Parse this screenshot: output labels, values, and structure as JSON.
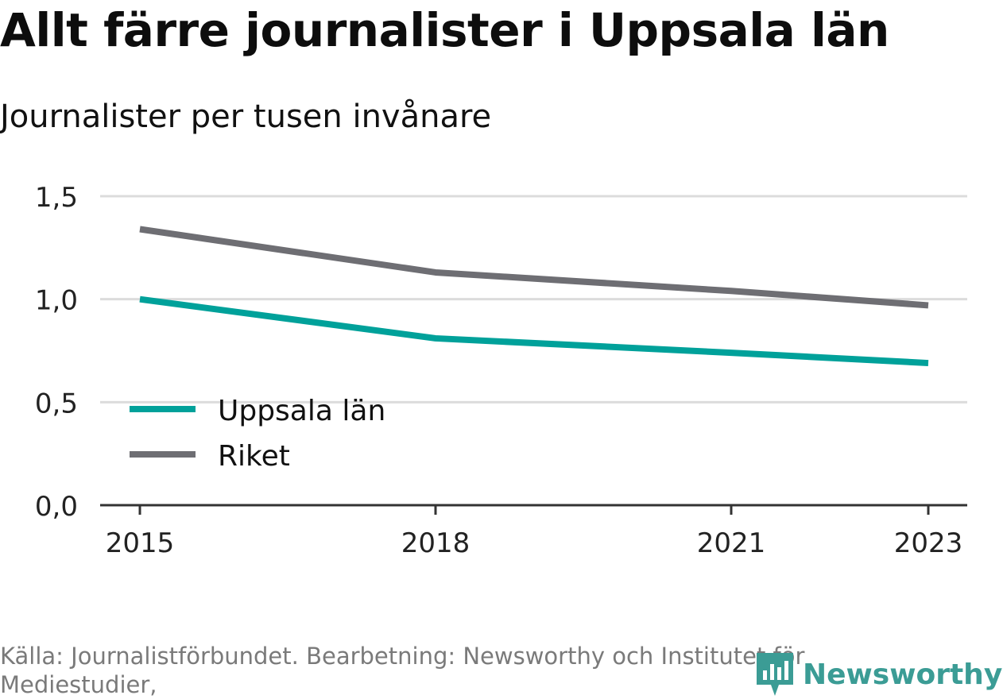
{
  "title": "Allt färre journalister i Uppsala län",
  "subtitle": "Journalister per tusen invånare",
  "source": "Källa: Journalistförbundet. Bearbetning: Newsworthy och Institutet för Mediestudier,",
  "logo_text": "Newsworthy",
  "logo_icon": "bar-chart-icon",
  "colors": {
    "uppsala": "#00a19a",
    "riket": "#6e6e73",
    "grid": "#dcdcdc",
    "axis": "#333333"
  },
  "chart_data": {
    "type": "line",
    "x_ticks": [
      "2015",
      "2018",
      "2021",
      "2023"
    ],
    "y_ticks": [
      "0,0",
      "0,5",
      "1,0",
      "1,5"
    ],
    "ylim": [
      0,
      1.5
    ],
    "xlim": [
      2015,
      2023
    ],
    "grid": true,
    "legend_position": "bottom-left",
    "series": [
      {
        "name": "Uppsala län",
        "color": "#00a19a",
        "points": [
          {
            "x": 2015,
            "y": 1.0
          },
          {
            "x": 2018,
            "y": 0.81
          },
          {
            "x": 2021,
            "y": 0.74
          },
          {
            "x": 2023,
            "y": 0.69
          }
        ]
      },
      {
        "name": "Riket",
        "color": "#6e6e73",
        "points": [
          {
            "x": 2015,
            "y": 1.34
          },
          {
            "x": 2018,
            "y": 1.13
          },
          {
            "x": 2021,
            "y": 1.04
          },
          {
            "x": 2023,
            "y": 0.97
          }
        ]
      }
    ]
  }
}
